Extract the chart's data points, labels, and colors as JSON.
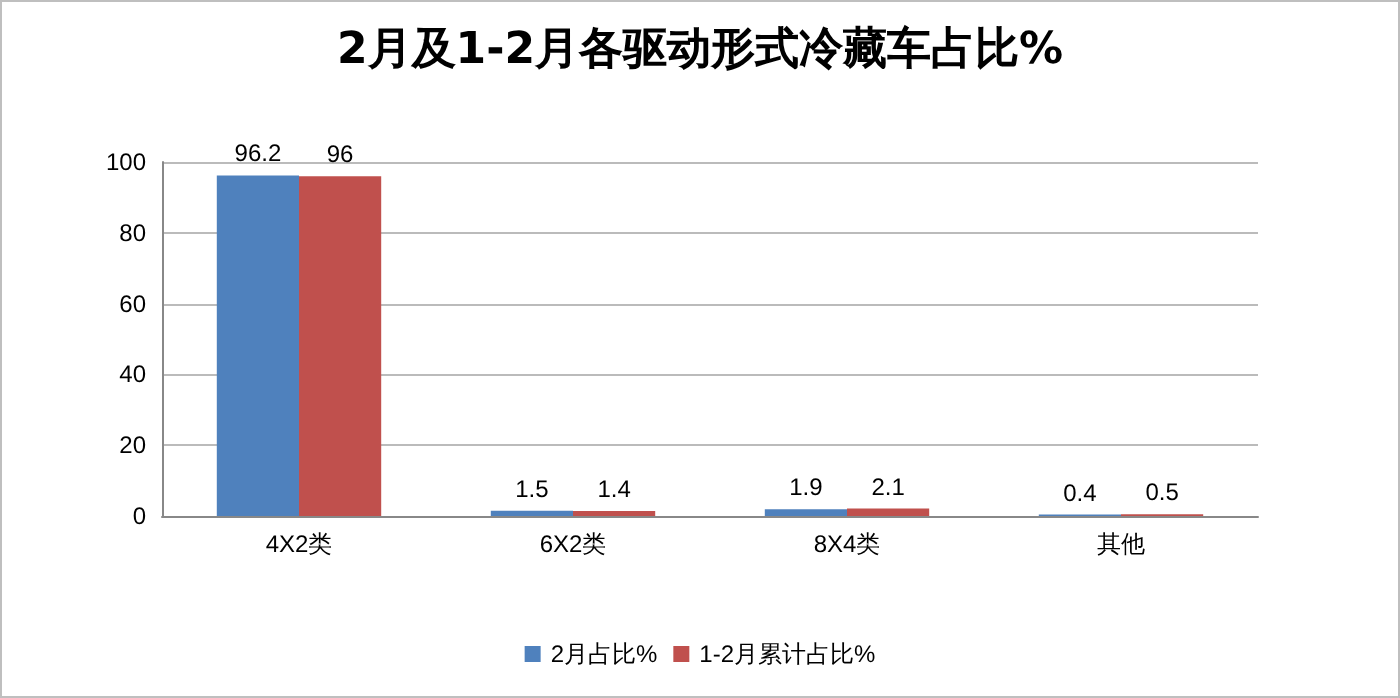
{
  "chart_data": {
    "type": "bar",
    "title": "2月及1-2月各驱动形式冷藏车占比%",
    "categories": [
      "4X2类",
      "6X2类",
      "8X4类",
      "其他"
    ],
    "series": [
      {
        "name": "2月占比%",
        "color": "#4f81bd",
        "values": [
          96.2,
          1.5,
          1.9,
          0.4
        ]
      },
      {
        "name": "1-2月累计占比%",
        "color": "#c0504d",
        "values": [
          96,
          1.4,
          2.1,
          0.5
        ]
      }
    ],
    "ylim": [
      0,
      100
    ],
    "yticks": [
      0,
      20,
      40,
      60,
      80,
      100
    ],
    "grid": "y",
    "legend": "bottom",
    "data_labels": true
  }
}
